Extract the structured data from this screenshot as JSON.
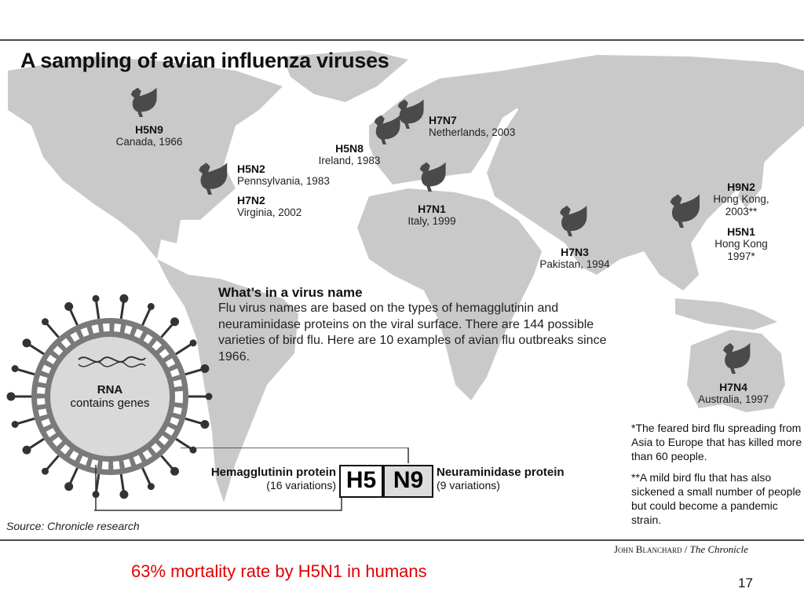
{
  "figure": {
    "title": "A sampling of avian influenza viruses",
    "markers": [
      {
        "strain": "H5N9",
        "place": "Canada, 1966"
      },
      {
        "strain": "H5N2",
        "place": "Pennsylvania, 1983"
      },
      {
        "strain": "H7N2",
        "place": "Virginia, 2002"
      },
      {
        "strain": "H5N8",
        "place": "Ireland, 1983"
      },
      {
        "strain": "H7N7",
        "place": "Netherlands, 2003"
      },
      {
        "strain": "H7N1",
        "place": "Italy, 1999"
      },
      {
        "strain": "H7N3",
        "place": "Pakistan, 1994"
      },
      {
        "strain": "H9N2",
        "place": "Hong Kong,",
        "place2": "2003**"
      },
      {
        "strain": "H5N1",
        "place": "Hong Kong",
        "place2": "1997*"
      },
      {
        "strain": "H7N4",
        "place": "Australia, 1997"
      }
    ],
    "explain": {
      "heading": "What’s in a virus name",
      "body": "Flu virus names are based on the types of hemagglutinin and neuraminidase proteins on the viral surface. There are 144 possible varieties of bird flu. Here are 10 examples of avian flu outbreaks since 1966."
    },
    "virus": {
      "label_line1": "RNA",
      "label_line2": "contains genes",
      "hemagglutinin_label": "Hemagglutinin protein",
      "hemagglutinin_variations": "(16 variations)",
      "neuraminidase_label": "Neuraminidase protein",
      "neuraminidase_variations": "(9 variations)",
      "code_h": "H",
      "code_5": "5",
      "code_n": "N",
      "code_9": "9"
    },
    "footnotes": {
      "one": "*The feared bird flu spreading from Asia to Europe that has killed more than 60 people.",
      "two": "**A mild bird flu that has also sickened a small number of people but could become a pandemic strain."
    },
    "source": "Source: Chronicle research",
    "credit_name": "John Blanchard",
    "credit_sep": " / ",
    "credit_pub": "The Chronicle",
    "colors": {
      "land": "#c9c9c9",
      "bird": "#4a4a4a",
      "ink": "#111111",
      "caption": "#e00000"
    }
  },
  "slide": {
    "caption": "63% mortality rate by H5N1 in humans",
    "page_number": "17"
  }
}
